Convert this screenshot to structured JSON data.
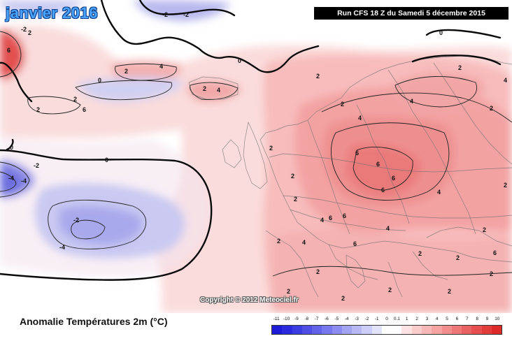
{
  "map": {
    "title": "janvier 2016",
    "run": "Run CFS 18 Z du Samedi 5 décembre 2015",
    "copyright": "Copyright © 2012 Meteociel.fr",
    "contour_label_values": [
      "0",
      "2",
      "4",
      "6",
      "-2",
      "-4"
    ]
  },
  "legend": {
    "title": "Anomalie Températures 2m (°C)",
    "ticks": [
      "-11",
      "-10",
      "-9",
      "-8",
      "-7",
      "-6",
      "-5",
      "-4",
      "-3",
      "-2",
      "-1",
      "0",
      "0.1",
      "1",
      "2",
      "3",
      "4",
      "5",
      "6",
      "7",
      "8",
      "9",
      "10"
    ],
    "colors": [
      "#1b1bd8",
      "#2a2ade",
      "#3b3be2",
      "#4f4fe6",
      "#6363ea",
      "#7878ee",
      "#8d8df1",
      "#a3a3f4",
      "#b8b8f7",
      "#cdcdfa",
      "#e3e3fc",
      "#ffffff",
      "#ffffff",
      "#fde3e3",
      "#fbcdcd",
      "#f8b8b8",
      "#f5a3a3",
      "#f28d8d",
      "#ee7878",
      "#ea6363",
      "#e64f4f",
      "#e13b3b",
      "#dc2a2a"
    ]
  }
}
